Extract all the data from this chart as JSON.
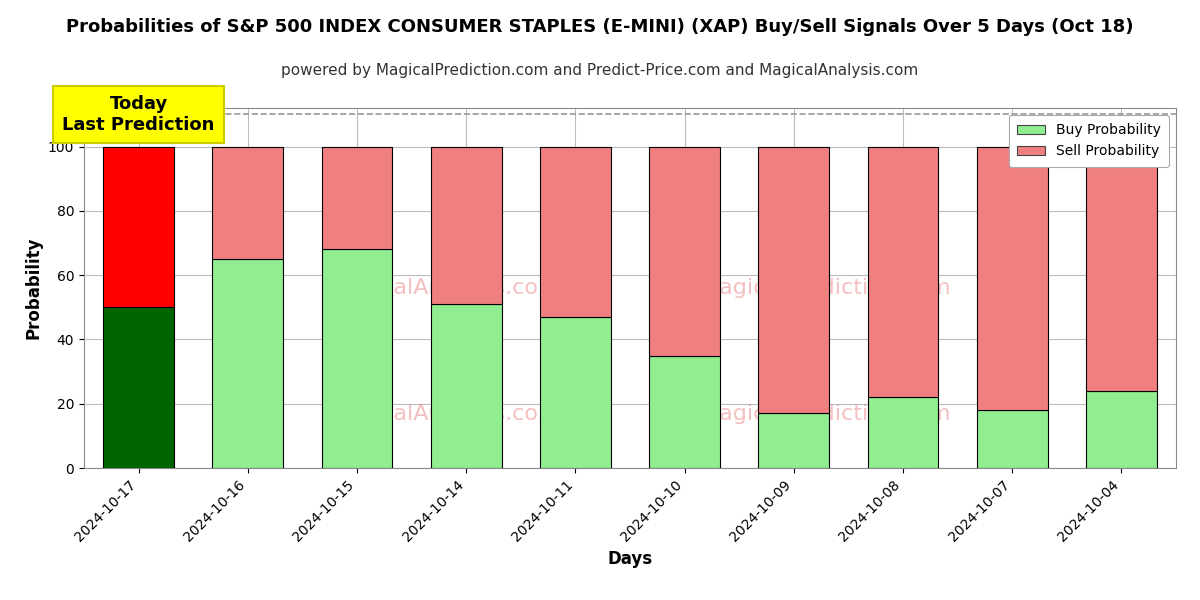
{
  "title": "Probabilities of S&P 500 INDEX CONSUMER STAPLES (E-MINI) (XAP) Buy/Sell Signals Over 5 Days (Oct 18)",
  "subtitle": "powered by MagicalPrediction.com and Predict-Price.com and MagicalAnalysis.com",
  "xlabel": "Days",
  "ylabel": "Probability",
  "days": [
    "2024-10-17",
    "2024-10-16",
    "2024-10-15",
    "2024-10-14",
    "2024-10-11",
    "2024-10-10",
    "2024-10-09",
    "2024-10-08",
    "2024-10-07",
    "2024-10-04"
  ],
  "buy_values": [
    50,
    65,
    68,
    51,
    47,
    35,
    17,
    22,
    18,
    24
  ],
  "sell_values": [
    50,
    35,
    32,
    49,
    53,
    65,
    83,
    78,
    82,
    76
  ],
  "today_bar_buy_color": "#006400",
  "today_bar_sell_color": "#FF0000",
  "regular_bar_buy_color": "#90EE90",
  "regular_bar_sell_color": "#F08080",
  "bar_edge_color": "#000000",
  "today_label_bg": "#FFFF00",
  "today_label_text": "Today\nLast Prediction",
  "ylim": [
    0,
    112
  ],
  "dashed_line_y": 110,
  "legend_buy_label": "Buy Probability",
  "legend_sell_label": "Sell Probability",
  "title_fontsize": 13,
  "subtitle_fontsize": 11,
  "axis_label_fontsize": 12,
  "tick_fontsize": 10,
  "background_color": "#ffffff",
  "plot_bg_color": "#ffffff",
  "grid_color": "#bbbbbb",
  "dashed_line_color": "#999999"
}
